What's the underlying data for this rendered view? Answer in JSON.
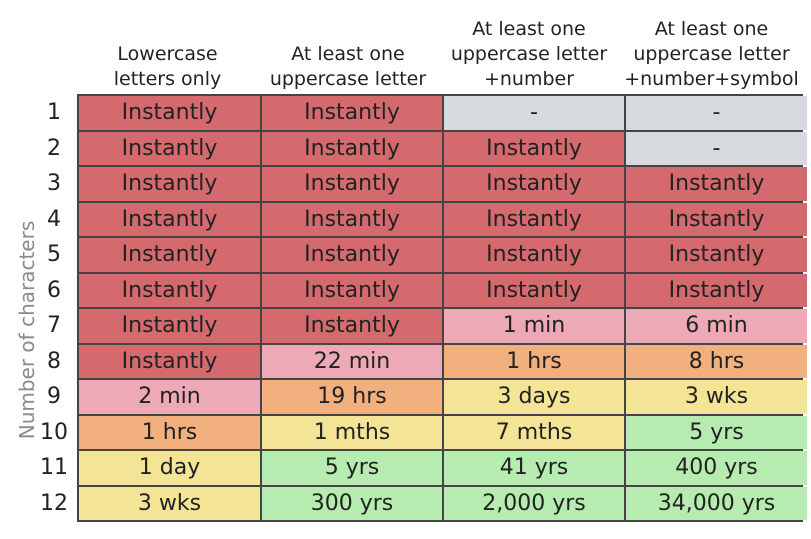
{
  "y_axis_label": "Number of characters",
  "columns": [
    "Lowercase\nletters only",
    "At least one\nuppercase letter",
    "At least one\nuppercase letter\n+number",
    "At least one\nuppercase letter\n+number+symbol"
  ],
  "row_labels": [
    "1",
    "2",
    "3",
    "4",
    "5",
    "6",
    "7",
    "8",
    "9",
    "10",
    "11",
    "12"
  ],
  "rows": [
    [
      "Instantly",
      "Instantly",
      "-",
      "-"
    ],
    [
      "Instantly",
      "Instantly",
      "Instantly",
      "-"
    ],
    [
      "Instantly",
      "Instantly",
      "Instantly",
      "Instantly"
    ],
    [
      "Instantly",
      "Instantly",
      "Instantly",
      "Instantly"
    ],
    [
      "Instantly",
      "Instantly",
      "Instantly",
      "Instantly"
    ],
    [
      "Instantly",
      "Instantly",
      "Instantly",
      "Instantly"
    ],
    [
      "Instantly",
      "Instantly",
      "1 min",
      "6 min"
    ],
    [
      "Instantly",
      "22 min",
      "1 hrs",
      "8 hrs"
    ],
    [
      "2 min",
      "19 hrs",
      "3 days",
      "3 wks"
    ],
    [
      "1 hrs",
      "1 mths",
      "7 mths",
      "5 yrs"
    ],
    [
      "1 day",
      "5 yrs",
      "41 yrs",
      "400 yrs"
    ],
    [
      "3 wks",
      "300 yrs",
      "2,000 yrs",
      "34,000 yrs"
    ]
  ],
  "cell_colors": [
    [
      "#d46a6d",
      "#d46a6d",
      "#d6d9de",
      "#d6d9de"
    ],
    [
      "#d46a6d",
      "#d46a6d",
      "#d46a6d",
      "#d6d9de"
    ],
    [
      "#d46a6d",
      "#d46a6d",
      "#d46a6d",
      "#d46a6d"
    ],
    [
      "#d46a6d",
      "#d46a6d",
      "#d46a6d",
      "#d46a6d"
    ],
    [
      "#d46a6d",
      "#d46a6d",
      "#d46a6d",
      "#d46a6d"
    ],
    [
      "#d46a6d",
      "#d46a6d",
      "#d46a6d",
      "#d46a6d"
    ],
    [
      "#d46a6d",
      "#d46a6d",
      "#eea9b7",
      "#eea9b7"
    ],
    [
      "#d46a6d",
      "#eea9b7",
      "#f1b07e",
      "#f1b07e"
    ],
    [
      "#eea9b7",
      "#f1b07e",
      "#f4e496",
      "#f4e496"
    ],
    [
      "#f1b07e",
      "#f4e496",
      "#f4e496",
      "#b7ecb1"
    ],
    [
      "#f4e496",
      "#b7ecb1",
      "#b7ecb1",
      "#b7ecb1"
    ],
    [
      "#f4e496",
      "#b7ecb1",
      "#b7ecb1",
      "#b7ecb1"
    ]
  ]
}
